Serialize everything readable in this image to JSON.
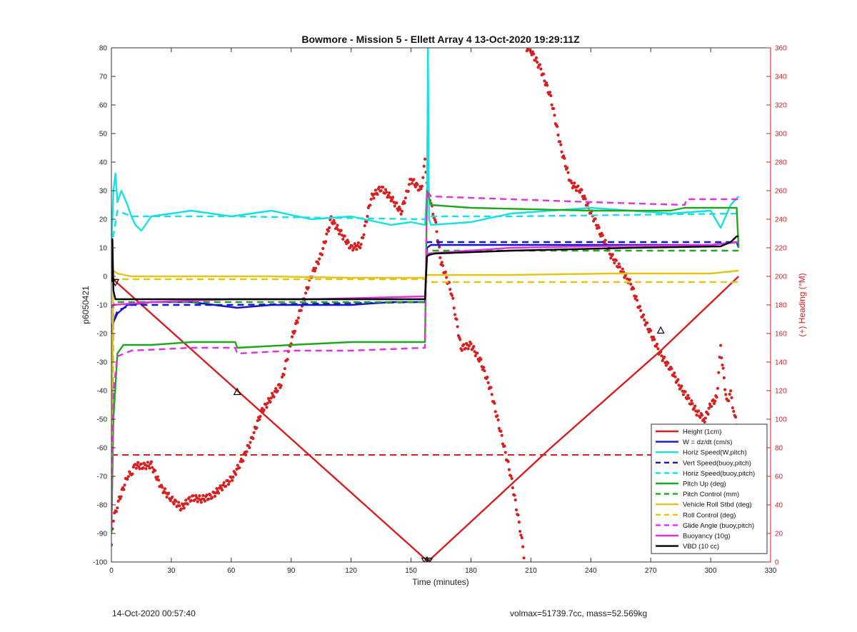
{
  "chart_data": {
    "type": "line",
    "title": "Bowmore - Mission 5 - Ellett Array 4 13-Oct-2020 19:29:11Z",
    "xlabel": "Time (minutes)",
    "ylabel": "p6050421",
    "ylabel_right": "(+) Heading (°M)",
    "xlim": [
      0,
      330
    ],
    "ylim": [
      -100,
      80
    ],
    "ylim_right": [
      0,
      360
    ],
    "xticks": [
      "0",
      "30",
      "60",
      "90",
      "120",
      "150",
      "180",
      "210",
      "240",
      "270",
      "300",
      "330"
    ],
    "yticks": [
      "-100",
      "-90",
      "-80",
      "-70",
      "-60",
      "-50",
      "-40",
      "-30",
      "-20",
      "-10",
      "0",
      "10",
      "20",
      "30",
      "40",
      "50",
      "60",
      "70",
      "80"
    ],
    "yticks_right": [
      "0",
      "20",
      "40",
      "60",
      "80",
      "100",
      "120",
      "140",
      "160",
      "180",
      "200",
      "220",
      "240",
      "260",
      "280",
      "300",
      "320",
      "340",
      "360"
    ],
    "grid": false,
    "legend_position": "bottom-right",
    "series": [
      {
        "name": "Height (1cm)",
        "color": "#d81e1e",
        "style": "solid",
        "x": [
          0,
          158,
          159,
          220,
          275,
          314
        ],
        "y": [
          -0.5,
          -99.5,
          -99.5,
          -60,
          -26,
          0
        ]
      },
      {
        "name": "W = dz/dt (cm/s)",
        "color": "#1414c8",
        "style": "solid",
        "x": [
          0,
          1,
          3,
          8,
          20,
          40,
          63,
          80,
          100,
          120,
          140,
          157,
          158,
          160,
          180,
          200,
          240,
          280,
          300,
          313,
          314
        ],
        "y": [
          -20,
          -16,
          -13,
          -10,
          -9,
          -9,
          -11,
          -10,
          -10,
          -10,
          -9,
          -9,
          10,
          11,
          11,
          11,
          11,
          11,
          11,
          12,
          10
        ]
      },
      {
        "name": "Horiz Speed(W,pitch)",
        "color": "#16e0e0",
        "style": "solid",
        "x": [
          0,
          1,
          2,
          3,
          5,
          8,
          10,
          12,
          15,
          20,
          30,
          40,
          60,
          80,
          100,
          120,
          140,
          150,
          157,
          158,
          158.5,
          159,
          160,
          180,
          200,
          220,
          240,
          260,
          280,
          300,
          305,
          310,
          314
        ],
        "y": [
          10,
          30,
          36,
          26,
          30,
          25,
          21,
          18,
          16,
          21,
          22,
          23,
          21,
          23,
          20,
          21,
          18,
          19,
          18,
          30,
          80,
          20,
          18,
          19,
          22,
          23,
          24,
          23,
          22,
          23,
          17,
          25,
          28
        ]
      },
      {
        "name": "Vert Speed(buoy,pitch)",
        "color": "#1414c8",
        "style": "dashed",
        "x": [
          0,
          3,
          10,
          60,
          157,
          158,
          200,
          314
        ],
        "y": [
          -18,
          -12,
          -10,
          -10,
          -9,
          12,
          12,
          12
        ]
      },
      {
        "name": "Horiz Speed(buoy,pitch)",
        "color": "#16e0e0",
        "style": "dashed",
        "x": [
          0,
          3,
          10,
          60,
          157,
          158,
          200,
          314
        ],
        "y": [
          10,
          23,
          21,
          21,
          20,
          21,
          21,
          22
        ]
      },
      {
        "name": "Pitch Up (deg)",
        "color": "#22a622",
        "style": "solid",
        "x": [
          0,
          1,
          3,
          6,
          20,
          40,
          62,
          63,
          90,
          120,
          157,
          158,
          160,
          180,
          240,
          280,
          287,
          300,
          313,
          314
        ],
        "y": [
          -90,
          -50,
          -27,
          -24,
          -24,
          -23,
          -23,
          -25,
          -24,
          -23,
          -23,
          30,
          25,
          24,
          23,
          23,
          24,
          24,
          24,
          10
        ]
      },
      {
        "name": "Pitch Control (mm)",
        "color": "#22a622",
        "style": "dashed",
        "x": [
          0,
          1,
          157,
          158,
          314
        ],
        "y": [
          -90,
          -9,
          -9,
          9,
          9
        ]
      },
      {
        "name": "Vehicle Roll Stbd (deg)",
        "color": "#e5c41a",
        "style": "solid",
        "x": [
          0,
          1,
          3,
          10,
          40,
          80,
          120,
          157,
          158,
          200,
          250,
          300,
          314
        ],
        "y": [
          -70,
          2,
          1,
          0,
          0,
          0,
          -0.5,
          -0.5,
          0.5,
          0.5,
          1,
          1,
          2
        ]
      },
      {
        "name": "Roll Control (deg)",
        "color": "#e5c41a",
        "style": "dashed",
        "x": [
          0,
          1,
          157,
          158,
          314
        ],
        "y": [
          -1,
          -1,
          -1,
          -2,
          -2
        ]
      },
      {
        "name": "Glide Angle (buoy,pitch)",
        "color": "#e030e0",
        "style": "dashed",
        "x": [
          0,
          1,
          3,
          10,
          40,
          62,
          63,
          90,
          120,
          157,
          158,
          160,
          200,
          240,
          287,
          288,
          314
        ],
        "y": [
          -88,
          -40,
          -28,
          -26,
          -25,
          -25,
          -27,
          -26,
          -26,
          -25,
          30,
          28,
          27,
          26,
          25,
          27,
          27
        ]
      },
      {
        "name": "Buoyancy (10g)",
        "color": "#e030e0",
        "style": "solid",
        "x": [
          0,
          1,
          20,
          60,
          100,
          157,
          158,
          200,
          240,
          300,
          314
        ],
        "y": [
          -11,
          -10,
          -9,
          -8,
          -8,
          -7,
          8,
          10,
          10.5,
          11,
          12
        ]
      },
      {
        "name": "VBD (10 cc)",
        "color": "#000000",
        "style": "solid",
        "x": [
          0,
          0.5,
          1,
          2,
          157,
          158,
          159,
          162,
          200,
          260,
          305,
          310,
          313,
          314
        ],
        "y": [
          -2,
          13,
          -5,
          -8,
          -8,
          7,
          7.5,
          8,
          9,
          10,
          10.5,
          12,
          14,
          14
        ]
      }
    ],
    "heading_series": {
      "name": "Heading",
      "color": "#d81e1e",
      "style": "dots",
      "x": [
        0,
        1,
        3,
        8,
        10,
        12,
        15,
        20,
        25,
        30,
        35,
        40,
        45,
        50,
        55,
        60,
        65,
        70,
        75,
        80,
        85,
        90,
        95,
        100,
        105,
        110,
        115,
        120,
        125,
        130,
        135,
        140,
        145,
        150,
        155,
        157,
        159,
        160,
        162,
        165,
        170,
        172,
        175,
        180,
        185,
        190,
        195,
        200,
        205,
        207,
        208,
        210,
        215,
        220,
        225,
        230,
        235,
        240,
        245,
        250,
        255,
        260,
        265,
        270,
        275,
        280,
        285,
        290,
        293,
        297,
        300,
        303,
        305,
        308,
        310,
        312,
        314
      ],
      "y": [
        12,
        30,
        40,
        60,
        62,
        68,
        67,
        68,
        52,
        44,
        38,
        45,
        44,
        46,
        52,
        58,
        70,
        85,
        105,
        115,
        125,
        155,
        178,
        200,
        215,
        240,
        230,
        220,
        222,
        255,
        262,
        255,
        245,
        268,
        260,
        280,
        255,
        250,
        240,
        210,
        190,
        175,
        150,
        152,
        140,
        120,
        90,
        60,
        20,
        0,
        360,
        358,
        345,
        325,
        290,
        265,
        260,
        245,
        230,
        215,
        205,
        195,
        175,
        160,
        145,
        135,
        122,
        112,
        105,
        100,
        110,
        115,
        150,
        112,
        118,
        102,
        92
      ]
    },
    "marker_points": {
      "x": [
        0,
        2,
        63,
        157,
        158,
        159,
        275
      ],
      "y": [
        -0.5,
        -2,
        -40.5,
        -99.5,
        -99.5,
        -99.5,
        -19
      ]
    },
    "reference_line": {
      "color": "#d81e1e",
      "style": "dashed",
      "y": -62.5,
      "x": [
        0,
        314
      ]
    }
  },
  "footer": {
    "left": "14-Oct-2020 00:57:40",
    "right": "volmax=51739.7cc, mass=52.569kg"
  }
}
